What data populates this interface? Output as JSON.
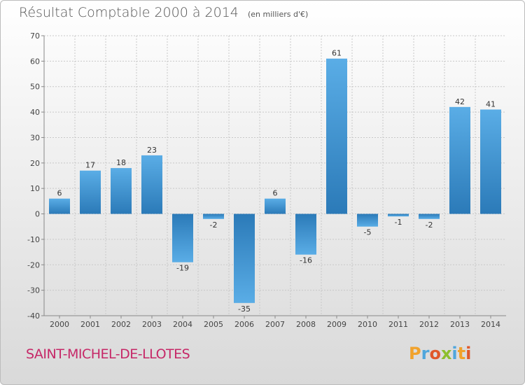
{
  "header": {
    "title": "Résultat Comptable 2000 à 2014",
    "unit": "(en milliers d'€)"
  },
  "footer": {
    "commune": "SAINT-MICHEL-DE-LLOTES",
    "logo_text": "Proxiti"
  },
  "colors": {
    "bar_light": "#5aade6",
    "bar_dark": "#2b7ab8",
    "title": "#555555",
    "commune": "#c62767"
  },
  "chart_data": {
    "type": "bar",
    "title": "Résultat Comptable 2000 à 2014",
    "xlabel": "",
    "ylabel": "",
    "ylim": [
      -40,
      70
    ],
    "yticks": [
      -40,
      -30,
      -20,
      -10,
      0,
      10,
      20,
      30,
      40,
      50,
      60,
      70
    ],
    "grid": true,
    "categories": [
      "2000",
      "2001",
      "2002",
      "2003",
      "2004",
      "2005",
      "2006",
      "2007",
      "2008",
      "2009",
      "2010",
      "2011",
      "2012",
      "2013",
      "2014"
    ],
    "values": [
      6,
      17,
      18,
      23,
      -19,
      -2,
      -35,
      6,
      -16,
      61,
      -5,
      -1,
      -2,
      42,
      41
    ],
    "labels": [
      "6",
      "17",
      "18",
      "23",
      "-19",
      "-2",
      "-35",
      "6",
      "-16",
      "61",
      "-5",
      "-1",
      "-2",
      "42",
      "41"
    ]
  }
}
